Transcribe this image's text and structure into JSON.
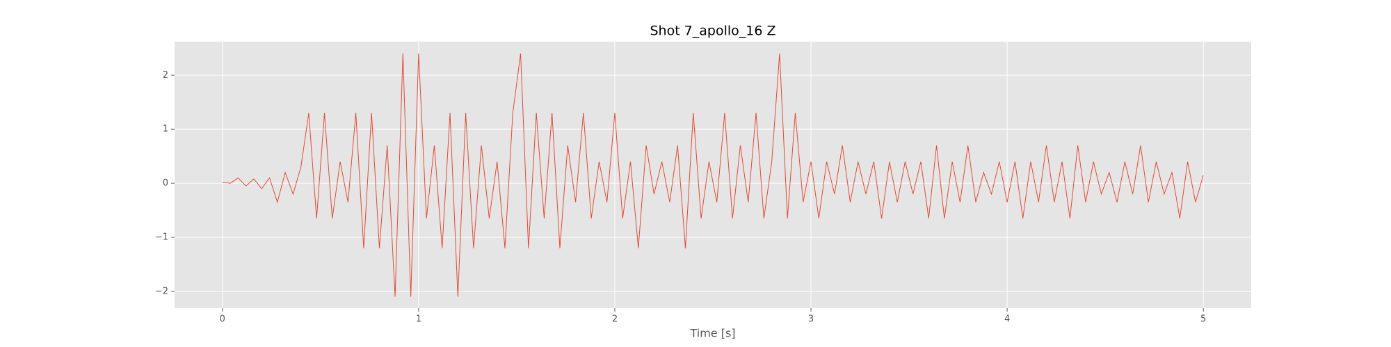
{
  "chart_data": {
    "type": "line",
    "title": "Shot 7_apollo_16 Z",
    "x_label": "Time [s]",
    "x": [
      0,
      0.04,
      0.08,
      0.12,
      0.16,
      0.2,
      0.24,
      0.28,
      0.32,
      0.36,
      0.4,
      0.44,
      0.48,
      0.52,
      0.56,
      0.6,
      0.64,
      0.68,
      0.72,
      0.76,
      0.8,
      0.84,
      0.88,
      0.92,
      0.96,
      1,
      1.04,
      1.08,
      1.12,
      1.16,
      1.2,
      1.24,
      1.28,
      1.32,
      1.36,
      1.4,
      1.44,
      1.48,
      1.52,
      1.56,
      1.6,
      1.64,
      1.68,
      1.72,
      1.76,
      1.8,
      1.84,
      1.88,
      1.92,
      1.96,
      2,
      2.04,
      2.08,
      2.12,
      2.16,
      2.2,
      2.24,
      2.28,
      2.32,
      2.36,
      2.4,
      2.44,
      2.48,
      2.52,
      2.56,
      2.6,
      2.64,
      2.68,
      2.72,
      2.76,
      2.8,
      2.84,
      2.88,
      2.92,
      2.96,
      3,
      3.04,
      3.08,
      3.12,
      3.16,
      3.2,
      3.24,
      3.28,
      3.32,
      3.36,
      3.4,
      3.44,
      3.48,
      3.52,
      3.56,
      3.6,
      3.64,
      3.68,
      3.72,
      3.76,
      3.8,
      3.84,
      3.88,
      3.92,
      3.96,
      4,
      4.04,
      4.08,
      4.12,
      4.16,
      4.2,
      4.24,
      4.28,
      4.32,
      4.36,
      4.4,
      4.44,
      4.48,
      4.52,
      4.56,
      4.6,
      4.64,
      4.68,
      4.72,
      4.76,
      4.8,
      4.84,
      4.88,
      4.92,
      4.96,
      5
    ],
    "values": [
      0.02,
      0,
      0.1,
      -0.05,
      0.08,
      -0.1,
      0.1,
      -0.35,
      0.2,
      -0.2,
      0.3,
      1.3,
      -0.65,
      1.3,
      -0.65,
      0.4,
      -0.35,
      1.3,
      -1.2,
      1.3,
      -1.2,
      0.7,
      -2.1,
      2.4,
      -2.1,
      2.4,
      -0.65,
      0.7,
      -1.2,
      1.3,
      -2.1,
      1.3,
      -1.2,
      0.7,
      -0.65,
      0.4,
      -1.2,
      1.3,
      2.4,
      -1.2,
      1.3,
      -0.65,
      1.3,
      -1.2,
      0.7,
      -0.35,
      1.3,
      -0.65,
      0.4,
      -0.35,
      1.3,
      -0.65,
      0.4,
      -1.2,
      0.7,
      -0.2,
      0.4,
      -0.35,
      0.7,
      -1.2,
      1.3,
      -0.65,
      0.4,
      -0.35,
      1.3,
      -0.65,
      0.7,
      -0.35,
      1.3,
      -0.65,
      0.4,
      2.4,
      -0.65,
      1.3,
      -0.35,
      0.4,
      -0.65,
      0.4,
      -0.2,
      0.7,
      -0.35,
      0.4,
      -0.2,
      0.4,
      -0.65,
      0.4,
      -0.35,
      0.4,
      -0.2,
      0.4,
      -0.65,
      0.7,
      -0.65,
      0.4,
      -0.35,
      0.7,
      -0.35,
      0.2,
      -0.2,
      0.4,
      -0.35,
      0.4,
      -0.65,
      0.4,
      -0.35,
      0.7,
      -0.35,
      0.4,
      -0.65,
      0.7,
      -0.35,
      0.4,
      -0.2,
      0.2,
      -0.35,
      0.4,
      -0.2,
      0.7,
      -0.35,
      0.4,
      -0.2,
      0.2,
      -0.65,
      0.4,
      -0.35,
      0.15
    ],
    "color": "#e24a33",
    "xlim": [
      -0.244,
      5.244
    ],
    "ylim": [
      -2.31,
      2.62
    ],
    "xticks": [
      0,
      1,
      2,
      3,
      4,
      5
    ],
    "yticks": [
      {
        "value": -2,
        "label": "−2"
      },
      {
        "value": -1,
        "label": "−1"
      },
      0,
      1,
      2
    ],
    "grid": true
  }
}
